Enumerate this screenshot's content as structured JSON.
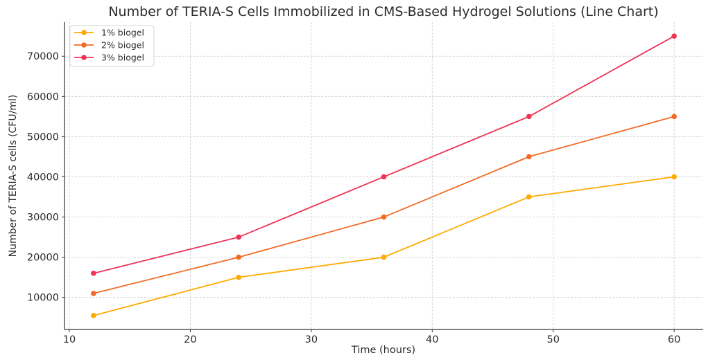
{
  "chart_data": {
    "type": "line",
    "title": "Number of TERIA-S Cells Immobilized in CMS-Based Hydrogel Solutions (Line Chart)",
    "xlabel": "Time (hours)",
    "ylabel": "Number of TERIA-S cells (CFU/ml)",
    "x": [
      12,
      24,
      36,
      48,
      60
    ],
    "xlim": [
      9.6,
      62.4
    ],
    "ylim": [
      2025,
      78475
    ],
    "xticks": [
      10,
      20,
      30,
      40,
      50,
      60
    ],
    "yticks": [
      10000,
      20000,
      30000,
      40000,
      50000,
      60000,
      70000
    ],
    "grid": true,
    "legend_position": "top-left",
    "series": [
      {
        "name": "1% biogel",
        "color": "#ffaa00",
        "values": [
          5500,
          15000,
          20000,
          35000,
          40000
        ]
      },
      {
        "name": "2% biogel",
        "color": "#f26a24",
        "values": [
          11000,
          20000,
          30000,
          45000,
          55000
        ]
      },
      {
        "name": "3% biogel",
        "color": "#ee3355",
        "values": [
          16000,
          25000,
          40000,
          55000,
          75000
        ]
      }
    ]
  }
}
